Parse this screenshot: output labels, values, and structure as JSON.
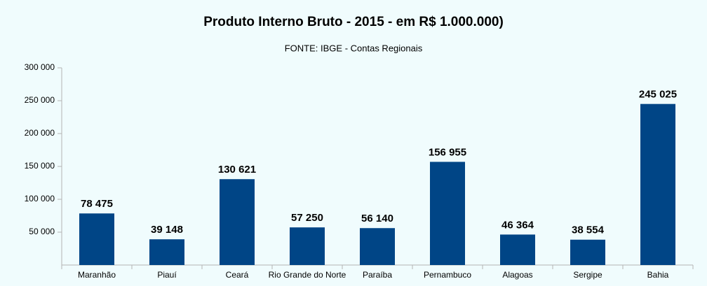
{
  "chart_data": {
    "type": "bar",
    "title": "Produto Interno Bruto - 2015 - em R$ 1.000.000)",
    "subtitle": "FONTE: IBGE - Contas Regionais",
    "categories": [
      "Maranhão",
      "Piauí",
      "Ceará",
      "Rio Grande do Norte",
      "Paraíba",
      "Pernambuco",
      "Alagoas",
      "Sergipe",
      "Bahia"
    ],
    "values": [
      78475,
      39148,
      130621,
      57250,
      56140,
      156955,
      46364,
      38554,
      245025
    ],
    "value_labels": [
      "78 475",
      "39 148",
      "130 621",
      "57 250",
      "56 140",
      "156 955",
      "46 364",
      "38 554",
      "245 025"
    ],
    "color": "#004586",
    "ylim": [
      0,
      300000
    ],
    "yticks": [
      {
        "value": 50000,
        "label": "50 000"
      },
      {
        "value": 100000,
        "label": "100 000"
      },
      {
        "value": 150000,
        "label": "150 000"
      },
      {
        "value": 200000,
        "label": "200 000"
      },
      {
        "value": 250000,
        "label": "250 000"
      },
      {
        "value": 300000,
        "label": "300 000"
      }
    ],
    "grid": false
  }
}
